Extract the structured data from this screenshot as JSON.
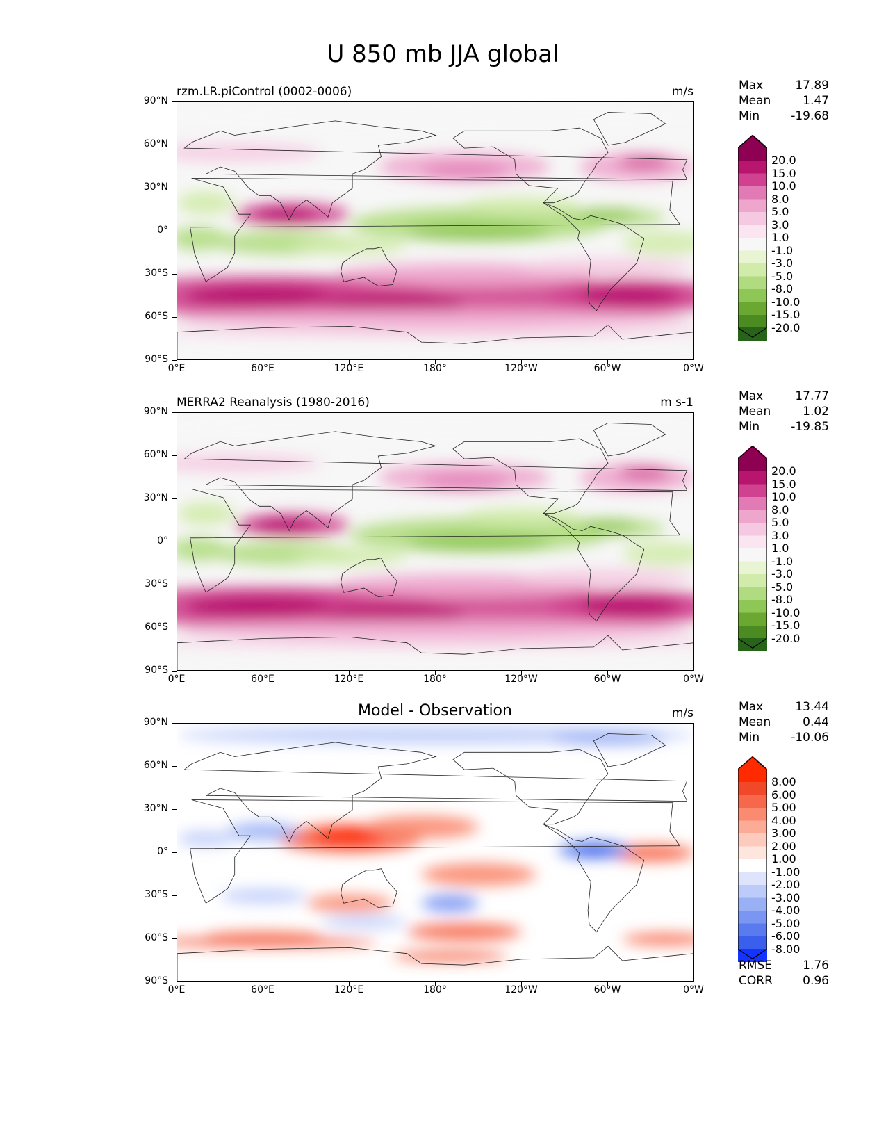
{
  "figure_title": "U 850 mb JJA global",
  "xticks": [
    "0°E",
    "60°E",
    "120°E",
    "180°",
    "120°W",
    "60°W",
    "0°W"
  ],
  "yticks": [
    "90°N",
    "60°N",
    "30°N",
    "0°",
    "30°S",
    "60°S",
    "90°S"
  ],
  "chart_data": [
    {
      "type": "heatmap",
      "title": "rzm.LR.piControl (0002-0006)",
      "units": "m/s",
      "stats": {
        "max": "17.89",
        "mean": "1.47",
        "min": "-19.68"
      },
      "stat_labels": {
        "max": "Max",
        "mean": "Mean",
        "min": "Min"
      },
      "levels": [
        "20.0",
        "15.0",
        "10.0",
        "8.0",
        "5.0",
        "3.0",
        "1.0",
        "-1.0",
        "-3.0",
        "-5.0",
        "-8.0",
        "-10.0",
        "-15.0",
        "-20.0"
      ],
      "colors": [
        "#8e0152",
        "#b7156e",
        "#d0428f",
        "#e27bb5",
        "#eea6cd",
        "#f5c9e1",
        "#fbe5f0",
        "#f7f7f7",
        "#e8f4d2",
        "#d0ebaa",
        "#b0db80",
        "#8ec755",
        "#6ba832",
        "#4b8b21",
        "#276419"
      ],
      "xlim": [
        0,
        360
      ],
      "ylim": [
        -90,
        90
      ]
    },
    {
      "type": "heatmap",
      "title": "MERRA2 Reanalysis (1980-2016)",
      "units": "m s-1",
      "stats": {
        "max": "17.77",
        "mean": "1.02",
        "min": "-19.85"
      },
      "stat_labels": {
        "max": "Max",
        "mean": "Mean",
        "min": "Min"
      },
      "levels": [
        "20.0",
        "15.0",
        "10.0",
        "8.0",
        "5.0",
        "3.0",
        "1.0",
        "-1.0",
        "-3.0",
        "-5.0",
        "-8.0",
        "-10.0",
        "-15.0",
        "-20.0"
      ],
      "colors": [
        "#8e0152",
        "#b7156e",
        "#d0428f",
        "#e27bb5",
        "#eea6cd",
        "#f5c9e1",
        "#fbe5f0",
        "#f7f7f7",
        "#e8f4d2",
        "#d0ebaa",
        "#b0db80",
        "#8ec755",
        "#6ba832",
        "#4b8b21",
        "#276419"
      ],
      "xlim": [
        0,
        360
      ],
      "ylim": [
        -90,
        90
      ]
    },
    {
      "type": "heatmap",
      "title": "Model - Observation",
      "units": "m/s",
      "stats": {
        "max": "13.44",
        "mean": "0.44",
        "min": "-10.06"
      },
      "stat_labels": {
        "max": "Max",
        "mean": "Mean",
        "min": "Min"
      },
      "levels": [
        "8.00",
        "6.00",
        "5.00",
        "4.00",
        "3.00",
        "2.00",
        "1.00",
        "-1.00",
        "-2.00",
        "-3.00",
        "-4.00",
        "-5.00",
        "-6.00",
        "-8.00"
      ],
      "colors": [
        "#ff2a00",
        "#f2482a",
        "#f7674b",
        "#fa8a70",
        "#fcab96",
        "#fdcbbd",
        "#fee5dd",
        "#ffffff",
        "#dde4fc",
        "#bccbf9",
        "#9ab0f5",
        "#7a95f2",
        "#5a7bee",
        "#3a5fed",
        "#1433ff"
      ],
      "rmse_label": "RMSE",
      "rmse": "1.76",
      "corr_label": "CORR",
      "corr": "0.96",
      "xlim": [
        0,
        360
      ],
      "ylim": [
        -90,
        90
      ]
    }
  ]
}
